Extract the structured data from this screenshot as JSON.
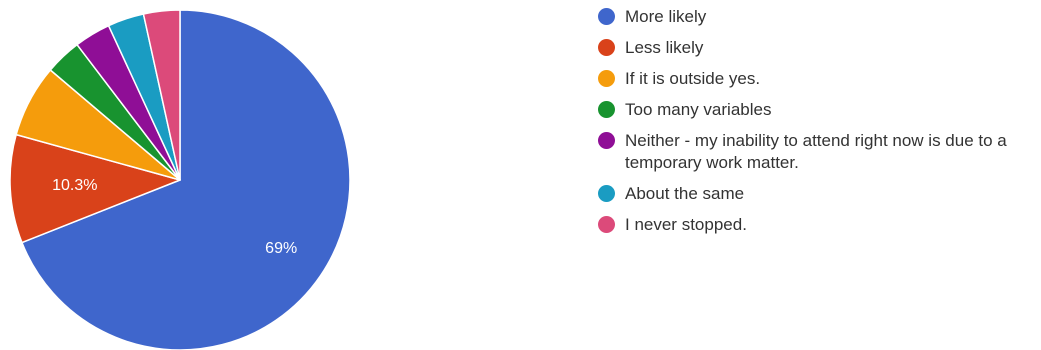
{
  "chart_data": {
    "type": "pie",
    "title": "",
    "legend_position": "right",
    "start_angle_deg": 90,
    "direction": "clockwise",
    "categories": [
      "More likely",
      "Less likely",
      "If it is outside yes.",
      "Too many variables",
      "Neither - my inability to attend right now is due to a temporary work matter.",
      "About the same",
      "I never stopped."
    ],
    "values": [
      69,
      10.3,
      6.9,
      3.45,
      3.45,
      3.45,
      3.45
    ],
    "colors": [
      "#3f66cc",
      "#d9421a",
      "#f59c0c",
      "#18932f",
      "#8f0e96",
      "#1a9cc2",
      "#dc4a7a"
    ],
    "slice_labels": [
      "69%",
      "10.3%",
      "",
      "",
      "",
      "",
      ""
    ]
  }
}
